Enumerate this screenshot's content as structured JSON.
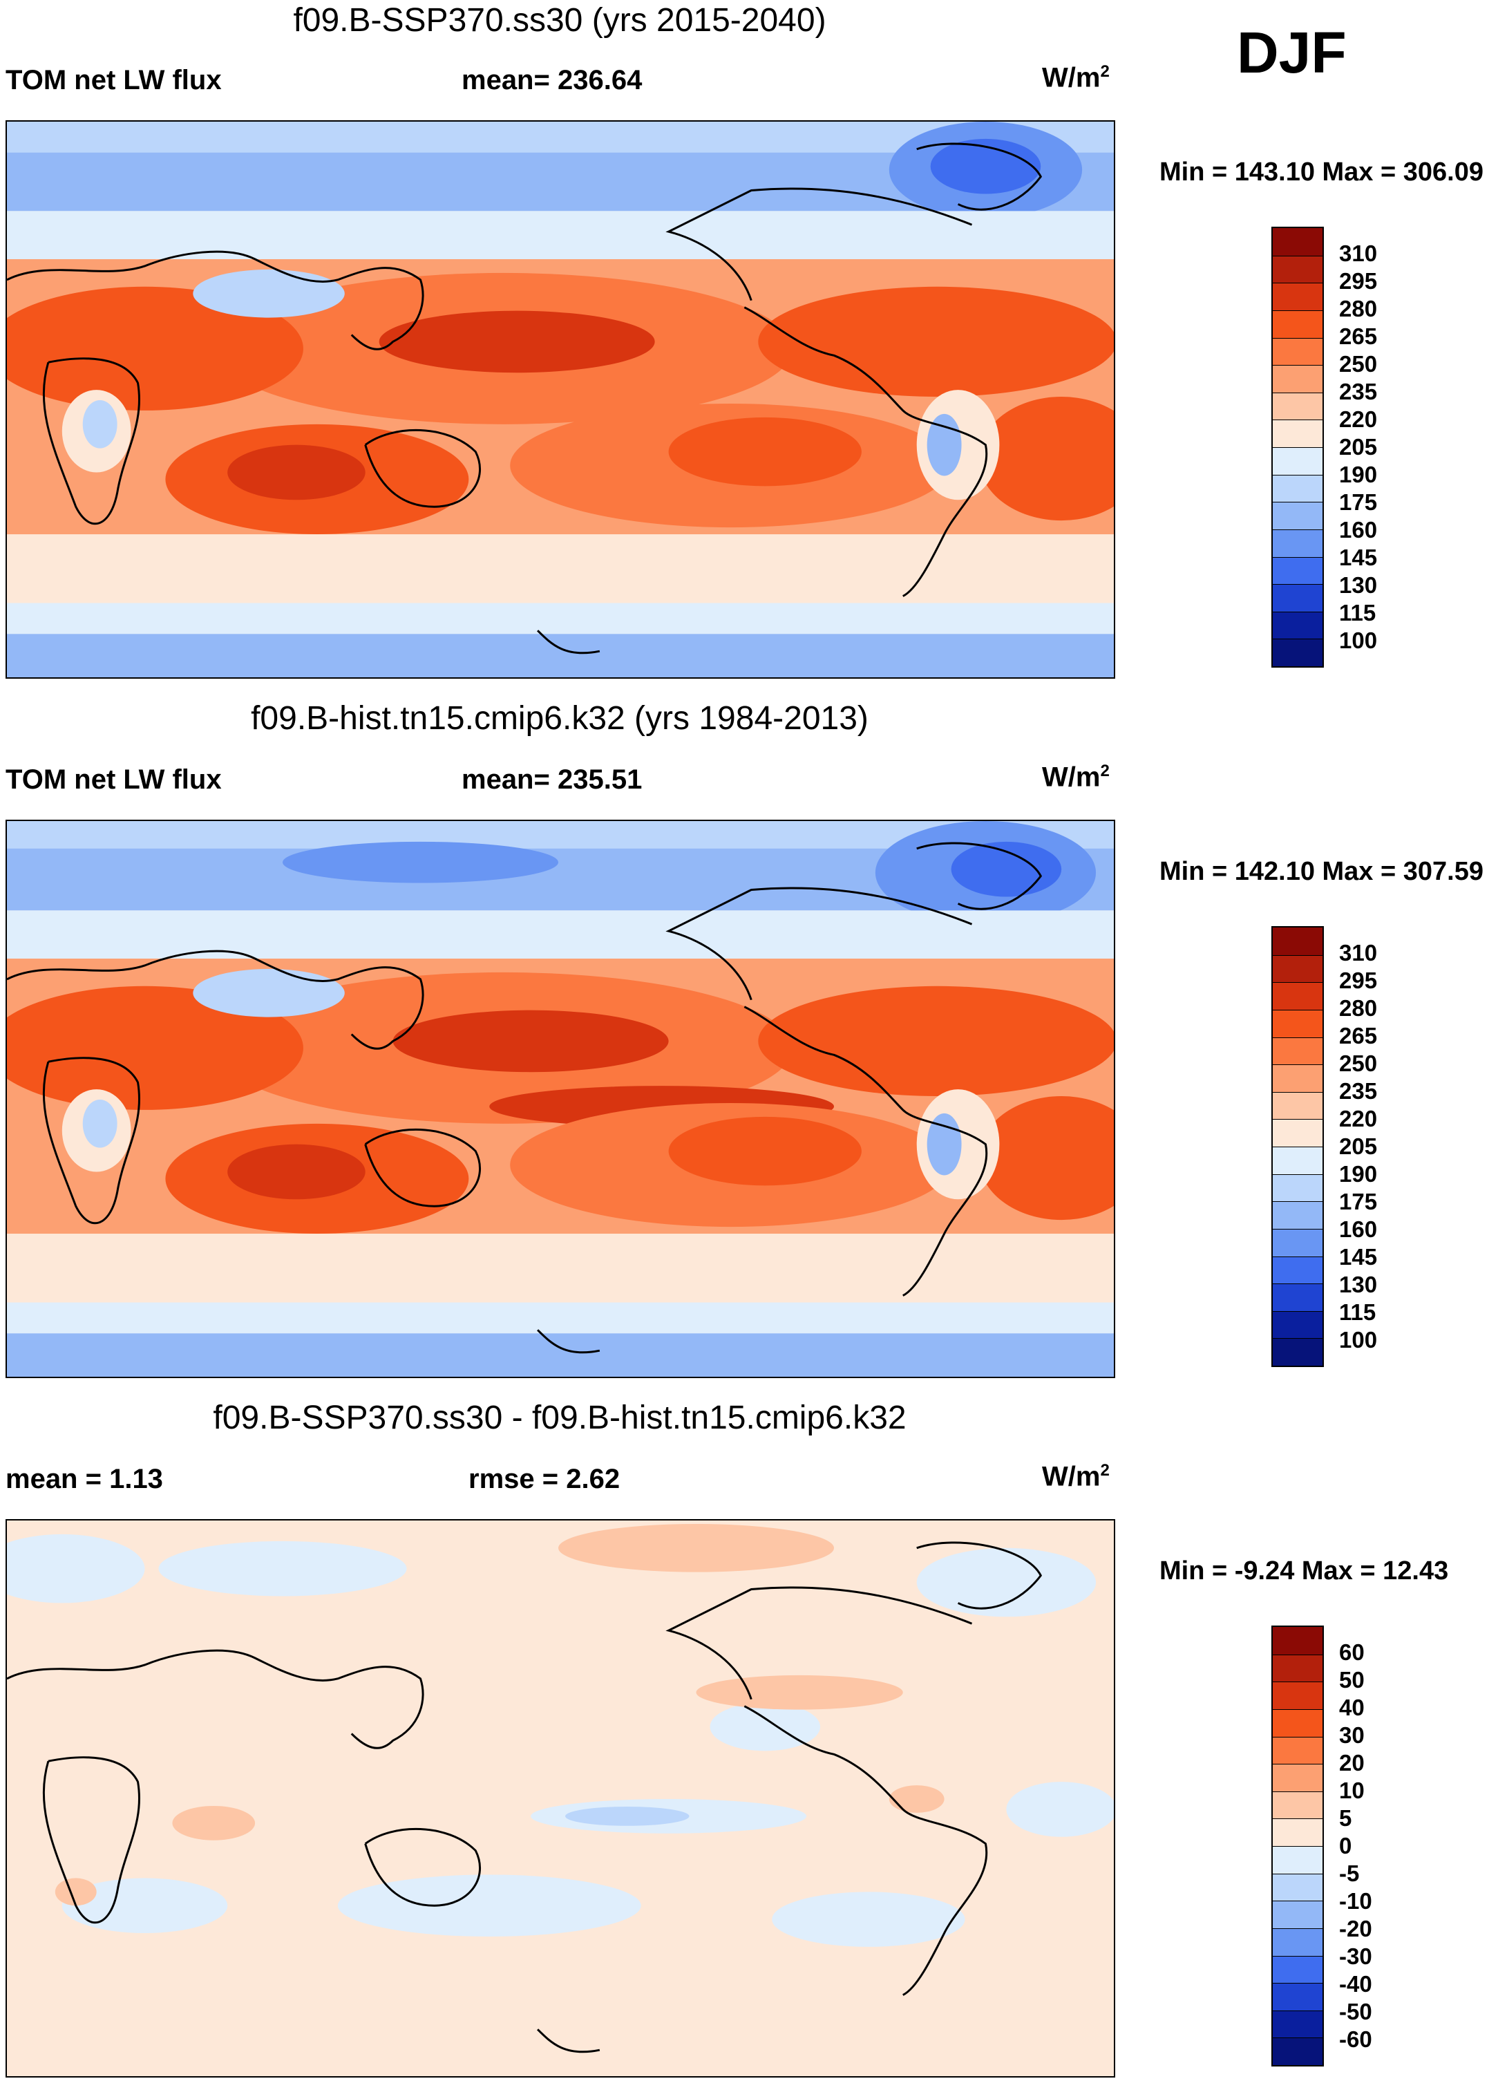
{
  "season": "DJF",
  "panels": [
    {
      "title": "f09.B-SSP370.ss30 (yrs 2015-2040)",
      "left_label": "TOM net LW flux",
      "mid_label": "mean= 236.64",
      "units": "W/m",
      "units_sup": "2",
      "minmax": "Min = 143.10 Max = 306.09",
      "colorbar": {
        "labels": [
          "310",
          "295",
          "280",
          "265",
          "250",
          "235",
          "220",
          "205",
          "190",
          "175",
          "160",
          "145",
          "130",
          "115",
          "100"
        ],
        "colors": [
          "#8b0a05",
          "#b3200c",
          "#d83510",
          "#f4551b",
          "#fb7840",
          "#fca072",
          "#fdc6a6",
          "#fde8d8",
          "#dfeefc",
          "#bbd6fb",
          "#93b8f7",
          "#6996f3",
          "#3f6def",
          "#1f44d2",
          "#0a1f9e",
          "#06137a"
        ]
      }
    },
    {
      "title": "f09.B-hist.tn15.cmip6.k32 (yrs 1984-2013)",
      "left_label": "TOM net LW flux",
      "mid_label": "mean= 235.51",
      "units": "W/m",
      "units_sup": "2",
      "minmax": "Min = 142.10 Max = 307.59",
      "colorbar": {
        "labels": [
          "310",
          "295",
          "280",
          "265",
          "250",
          "235",
          "220",
          "205",
          "190",
          "175",
          "160",
          "145",
          "130",
          "115",
          "100"
        ],
        "colors": [
          "#8b0a05",
          "#b3200c",
          "#d83510",
          "#f4551b",
          "#fb7840",
          "#fca072",
          "#fdc6a6",
          "#fde8d8",
          "#dfeefc",
          "#bbd6fb",
          "#93b8f7",
          "#6996f3",
          "#3f6def",
          "#1f44d2",
          "#0a1f9e",
          "#06137a"
        ]
      }
    },
    {
      "title": "f09.B-SSP370.ss30 - f09.B-hist.tn15.cmip6.k32",
      "left_label": "mean =   1.13",
      "mid_label": "rmse =   2.62",
      "units": "W/m",
      "units_sup": "2",
      "minmax": "Min =  -9.24 Max =  12.43",
      "colorbar": {
        "labels": [
          "60",
          "50",
          "40",
          "30",
          "20",
          "10",
          "5",
          "0",
          "-5",
          "-10",
          "-20",
          "-30",
          "-40",
          "-50",
          "-60"
        ],
        "colors": [
          "#8b0a05",
          "#b3200c",
          "#d83510",
          "#f4551b",
          "#fb7840",
          "#fca072",
          "#fdc6a6",
          "#fde8d8",
          "#dfeefc",
          "#bbd6fb",
          "#93b8f7",
          "#6996f3",
          "#3f6def",
          "#1f44d2",
          "#0a1f9e",
          "#06137a"
        ]
      }
    }
  ]
}
